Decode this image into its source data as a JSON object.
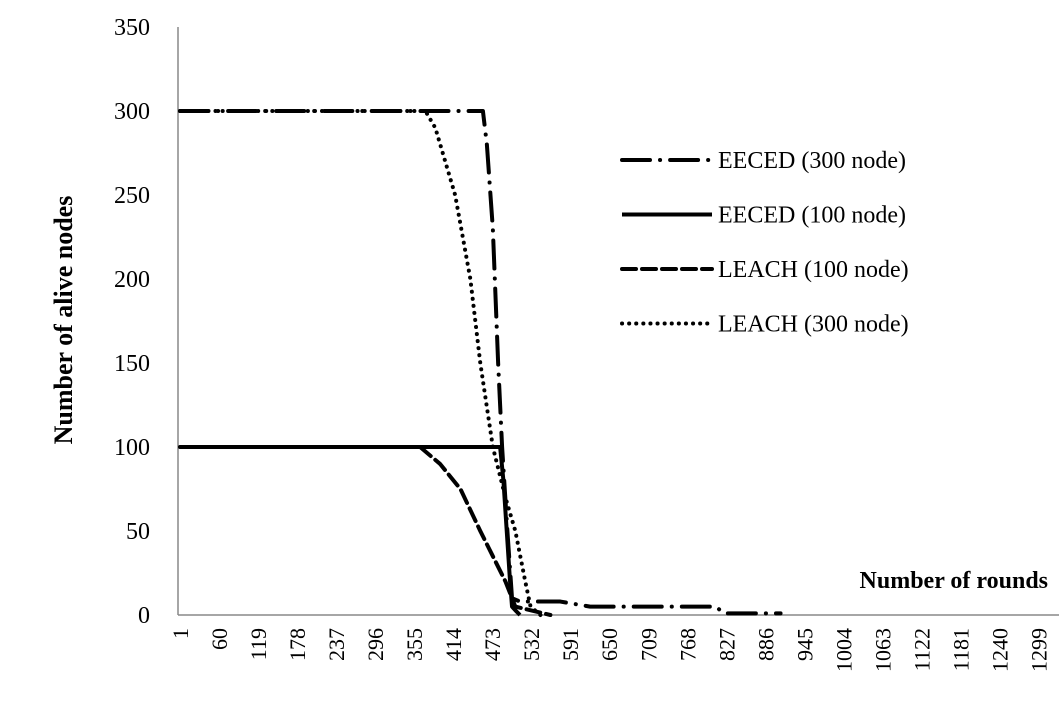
{
  "chart_data": {
    "type": "line",
    "ylabel": "Number of alive nodes",
    "xlabel": "Number of rounds",
    "xlim": [
      1,
      1330
    ],
    "xticks": [
      1,
      60,
      119,
      178,
      237,
      296,
      355,
      414,
      473,
      532,
      591,
      650,
      709,
      768,
      827,
      886,
      945,
      1004,
      1063,
      1122,
      1181,
      1240,
      1299
    ],
    "ylim": [
      0,
      350
    ],
    "yticks": [
      0,
      50,
      100,
      150,
      200,
      250,
      300,
      350
    ],
    "grid": false,
    "legend": "right",
    "series": [
      {
        "name": "EECED (300 node)",
        "color": "#000000",
        "style": "dashdot",
        "x": [
          1,
          459,
          465,
          474,
          482,
          488,
          496,
          503,
          515,
          576,
          621,
          712,
          810,
          825,
          909
        ],
        "values": [
          300,
          300,
          280,
          230,
          150,
          100,
          50,
          10,
          8,
          8,
          5,
          5,
          5,
          1,
          1
        ]
      },
      {
        "name": "EECED (100 node)",
        "color": "#000000",
        "style": "solid",
        "x": [
          1,
          485,
          490,
          495,
          500,
          503,
          510,
          515
        ],
        "values": [
          100,
          100,
          80,
          50,
          20,
          5,
          2,
          0
        ]
      },
      {
        "name": "LEACH (100 node)",
        "color": "#000000",
        "style": "dashed",
        "x": [
          1,
          364,
          394,
          425,
          455,
          474,
          493,
          508,
          561
        ],
        "values": [
          100,
          100,
          90,
          75,
          50,
          35,
          20,
          5,
          0
        ]
      },
      {
        "name": "LEACH (300 node)",
        "color": "#000000",
        "style": "dotted",
        "x": [
          1,
          372,
          387,
          417,
          440,
          455,
          474,
          493,
          508,
          523,
          531,
          546
        ],
        "values": [
          300,
          300,
          290,
          250,
          200,
          150,
          100,
          70,
          50,
          20,
          5,
          0
        ]
      }
    ]
  }
}
